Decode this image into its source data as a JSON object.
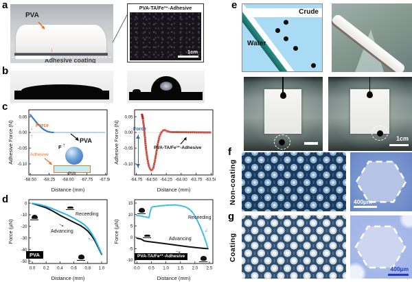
{
  "panels": {
    "a": {
      "letter": "a",
      "pva_label": "PVA",
      "adhesive_coating_label": "Adhesive coating",
      "inset_title": "PVA-TA/Fe³⁺-Adhesive",
      "inset_scalebar": "1cm"
    },
    "b": {
      "letter": "b"
    },
    "c": {
      "letter": "c",
      "left": {
        "force_label": "Force",
        "pva_label": "PVA",
        "inset_f_label": "F",
        "inset_adhesive_label": "Adhesive",
        "inset_pva_label": "PVA"
      },
      "right": {
        "force_label": "Force",
        "sample_label": "PVA-TA/Fe³⁺-Adhesive"
      }
    },
    "d": {
      "letter": "d",
      "left": {
        "receding_label": "Receeding",
        "advancing_label": "Advancing",
        "sample_label": "PVA"
      },
      "right": {
        "receding_label": "Receeding",
        "advancing_label": "Advancing",
        "sample_label": "PVA-TA/Fe³⁺-Adhesive"
      }
    },
    "e": {
      "letter": "e",
      "crude_label": "Crude",
      "water_label": "Water",
      "scalebar": "1cm"
    },
    "f": {
      "letter": "f",
      "side_label": "Non-coating",
      "scalebar": "400µm"
    },
    "g": {
      "letter": "g",
      "side_label": "Coating",
      "scalebar": "400µm"
    }
  },
  "colors": {
    "accent_orange": "#e87420",
    "curve_blue": "#3a79c4",
    "curve_lightblue": "#a8cdec",
    "curve_red": "#c0392b",
    "curve_cyan": "#29b5e8",
    "force_arrow_blue": "#2b6cb8"
  },
  "chart_data": [
    {
      "id": "c-left",
      "type": "line",
      "xlabel": "Distance (mm)",
      "ylabel": "Adhesive Force (N)",
      "xlim": [
        -68.52,
        -67.48
      ],
      "ylim": [
        -0.135,
        0.072
      ],
      "xticks": [
        -68.5,
        -68.25,
        -68.0,
        -67.75,
        -67.5
      ],
      "yticks": [
        0.05,
        0.0,
        -0.05,
        -0.1
      ],
      "xdec": 2,
      "ydec": 2,
      "zeroline": true,
      "series": [
        {
          "name": "PVA approach-retract",
          "style": "line",
          "color": "#3a79c4",
          "width": 2.2,
          "points": [
            [
              -68.5,
              0.056
            ],
            [
              -68.47,
              0.047
            ],
            [
              -68.44,
              0.038
            ],
            [
              -68.41,
              0.029
            ],
            [
              -68.38,
              0.022
            ],
            [
              -68.35,
              0.015
            ],
            [
              -68.32,
              0.009
            ],
            [
              -68.29,
              0.005
            ],
            [
              -68.26,
              0.002
            ],
            [
              -68.22,
              0.0005
            ],
            [
              -68.18,
              0
            ]
          ]
        },
        {
          "name": "baseline",
          "style": "markers",
          "marker": "sq",
          "gap": 2.5,
          "color": "#a8cdec",
          "points": [
            [
              -68.18,
              0
            ],
            [
              -67.5,
              0
            ]
          ]
        }
      ]
    },
    {
      "id": "c-right",
      "type": "line",
      "xlabel": "Distance (mm)",
      "ylabel": "Adhesive Force (N)",
      "xlim": [
        -64.78,
        -63.47
      ],
      "ylim": [
        -0.135,
        0.072
      ],
      "xticks": [
        -64.75,
        -64.5,
        -64.25,
        -64.0,
        -63.75,
        -63.5
      ],
      "yticks": [
        0.05,
        0.0,
        -0.05,
        -0.1
      ],
      "xdec": 2,
      "ydec": 2,
      "zeroline": true,
      "series": [
        {
          "name": "approach",
          "style": "markers",
          "marker": "dot",
          "r": 1.7,
          "gap": 2.5,
          "color": "#cc1c1c",
          "points": [
            [
              -64.655,
              0.056
            ],
            [
              -64.648,
              0.05
            ],
            [
              -64.641,
              0.044
            ]
          ]
        },
        {
          "name": "PVA-TA/Fe3+ adhesion",
          "style": "line+markers",
          "marker": "osq",
          "gap": 3,
          "color": "#c0392b",
          "width": 0.9,
          "points": [
            [
              -64.64,
              0.04
            ],
            [
              -64.625,
              0.02
            ],
            [
              -64.61,
              -0.01
            ],
            [
              -64.59,
              -0.05
            ],
            [
              -64.565,
              -0.085
            ],
            [
              -64.54,
              -0.108
            ],
            [
              -64.515,
              -0.119
            ],
            [
              -64.49,
              -0.121
            ],
            [
              -64.465,
              -0.112
            ],
            [
              -64.44,
              -0.09
            ],
            [
              -64.415,
              -0.062
            ],
            [
              -64.39,
              -0.035
            ],
            [
              -64.365,
              -0.014
            ],
            [
              -64.34,
              -0.002
            ],
            [
              -64.31,
              0.006
            ],
            [
              -64.28,
              0.008
            ],
            [
              -64.25,
              0.005
            ],
            [
              -64.2,
              0.002
            ],
            [
              -64.15,
              0.001
            ],
            [
              -63.5,
              0.0
            ]
          ]
        }
      ]
    },
    {
      "id": "d-left",
      "type": "line",
      "xlabel": "Distance (mm)",
      "ylabel": "Force (µN)",
      "xlim": [
        -0.05,
        1.08
      ],
      "ylim": [
        -52,
        3
      ],
      "xticks": [
        0.0,
        0.2,
        0.4,
        0.6,
        0.8,
        1.0
      ],
      "yticks": [
        0,
        -10,
        -20,
        -30,
        -40,
        -50
      ],
      "xdec": 1,
      "ydec": 0,
      "zeroline": false,
      "series": [
        {
          "name": "Advancing",
          "style": "line",
          "color": "#111111",
          "width": 2,
          "points": [
            [
              0,
              -0.3
            ],
            [
              0.1,
              -2
            ],
            [
              0.2,
              -4
            ],
            [
              0.3,
              -7
            ],
            [
              0.4,
              -10.5
            ],
            [
              0.5,
              -13.5
            ],
            [
              0.6,
              -16.5
            ],
            [
              0.7,
              -19.5
            ],
            [
              0.75,
              -21.5
            ],
            [
              0.8,
              -24
            ],
            [
              0.85,
              -27.5
            ],
            [
              0.9,
              -32
            ],
            [
              0.95,
              -38
            ],
            [
              1.0,
              -44
            ]
          ]
        },
        {
          "name": "Receeding",
          "style": "line",
          "color": "#29b5e8",
          "width": 2,
          "points": [
            [
              0,
              -0.2
            ],
            [
              0.1,
              -1.2
            ],
            [
              0.2,
              -2.8
            ],
            [
              0.3,
              -5
            ],
            [
              0.4,
              -7.5
            ],
            [
              0.5,
              -10
            ],
            [
              0.6,
              -13
            ],
            [
              0.7,
              -16.5
            ],
            [
              0.75,
              -18.5
            ],
            [
              0.8,
              -21.5
            ],
            [
              0.85,
              -25.5
            ],
            [
              0.9,
              -30.5
            ],
            [
              0.95,
              -37
            ],
            [
              1.0,
              -43.5
            ]
          ]
        }
      ]
    },
    {
      "id": "d-right",
      "type": "line",
      "xlabel": "Distance (mm)",
      "ylabel": "Force (µN)",
      "xlim": [
        -0.08,
        2.62
      ],
      "ylim": [
        -11.5,
        16.5
      ],
      "xticks": [
        0.0,
        0.5,
        1.0,
        1.5,
        2.0,
        2.5
      ],
      "yticks": [
        15,
        10,
        5,
        0,
        -5,
        -10
      ],
      "xdec": 1,
      "ydec": 0,
      "zeroline": false,
      "series": [
        {
          "name": "Receeding",
          "style": "markers",
          "marker": "sq",
          "gap": 2.2,
          "color": "#29b5e8",
          "points": [
            [
              0,
              9.6
            ],
            [
              0.15,
              9.3
            ],
            [
              0.3,
              8.9
            ],
            [
              0.42,
              8.6
            ],
            [
              0.45,
              10.8
            ],
            [
              0.5,
              13.0
            ],
            [
              0.55,
              13.4
            ],
            [
              0.7,
              13.6
            ],
            [
              0.9,
              13.9
            ],
            [
              1.1,
              14.1
            ],
            [
              1.3,
              14.2
            ],
            [
              1.5,
              13.9
            ],
            [
              1.7,
              13.2
            ],
            [
              1.8,
              12.4
            ],
            [
              1.9,
              11.2
            ],
            [
              2.0,
              9.4
            ],
            [
              2.1,
              7.0
            ],
            [
              2.2,
              4.2
            ],
            [
              2.3,
              1.0
            ],
            [
              2.38,
              -2.0
            ],
            [
              2.45,
              -4.8
            ]
          ]
        },
        {
          "name": "Advancing",
          "style": "line",
          "color": "#111111",
          "width": 2,
          "points": [
            [
              0,
              -0.4
            ],
            [
              0.15,
              -0.8
            ],
            [
              0.25,
              -1.6
            ],
            [
              0.4,
              -1.9
            ],
            [
              0.6,
              -2.2
            ],
            [
              0.9,
              -2.7
            ],
            [
              1.2,
              -3.2
            ],
            [
              1.5,
              -3.7
            ],
            [
              1.8,
              -4.2
            ],
            [
              2.1,
              -4.6
            ],
            [
              2.35,
              -4.9
            ],
            [
              2.45,
              -5.0
            ]
          ]
        }
      ]
    }
  ]
}
